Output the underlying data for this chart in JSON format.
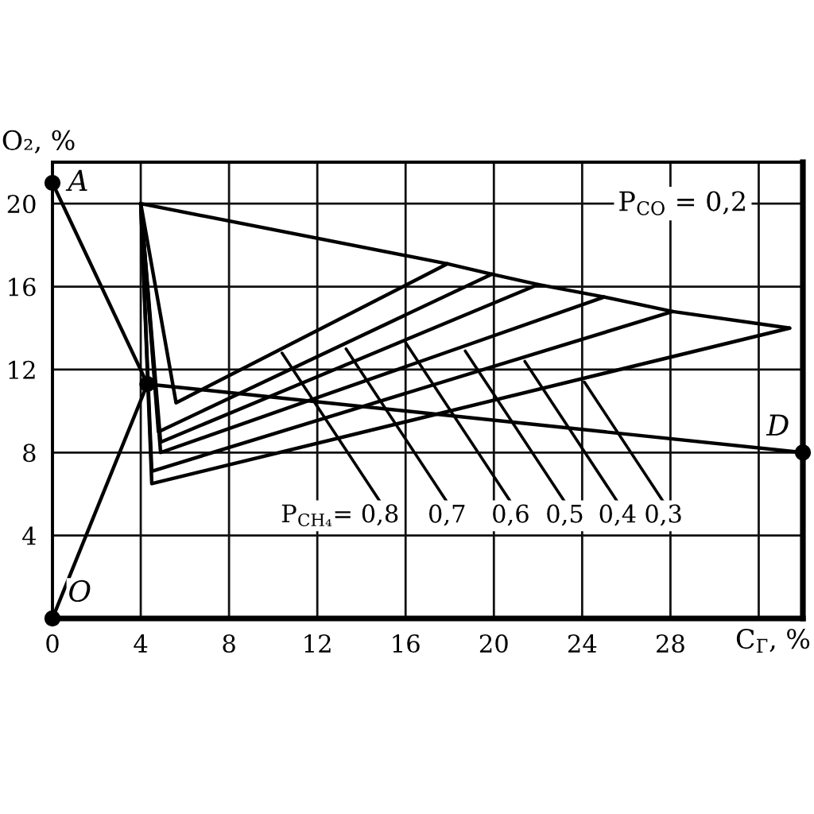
{
  "chart_data": {
    "type": "line",
    "xlabel": "C$_{Г}$, %",
    "ylabel": "O₂, %",
    "xlim": [
      0,
      34
    ],
    "ylim": [
      0,
      22
    ],
    "xticks": [
      0,
      4,
      8,
      12,
      16,
      20,
      24,
      28,
      {
        "value": 32,
        "label": null
      }
    ],
    "yticks": [
      4,
      8,
      12,
      16,
      20
    ],
    "grid": true,
    "legend": false,
    "annotations": [
      "P$_{CO}$ = 0,2",
      {
        "text": "P$_{CH₄}$= 0,8",
        "x": 10.4,
        "y": 12.8
      },
      {
        "text": "0,7",
        "x": 13.3,
        "y": 13.0
      },
      {
        "text": "0,6",
        "x": 16.0,
        "y": 13.3
      },
      {
        "text": "0,5",
        "x": 18.7,
        "y": 12.9
      },
      {
        "text": "0,4",
        "x": 21.4,
        "y": 12.4
      },
      {
        "text": "0,3",
        "x": 24.1,
        "y": 11.4
      }
    ],
    "series": [
      {
        "color": "#000000",
        "x": [
          4,
          17.9,
          19.9,
          22.0,
          25.0,
          28.1,
          33.4
        ],
        "values": [
          20,
          17.1,
          16.6,
          16.1,
          15.5,
          14.8,
          14.0
        ]
      },
      {
        "color": "#000000",
        "x": [
          4,
          5.6,
          17.9
        ],
        "values": [
          20,
          10.4,
          17.1
        ]
      },
      {
        "color": "#000000",
        "x": [
          4,
          4.8,
          19.9
        ],
        "values": [
          20,
          9.0,
          16.6
        ]
      },
      {
        "color": "#000000",
        "x": [
          4,
          4.9,
          22.0
        ],
        "values": [
          20,
          8.5,
          16.1
        ]
      },
      {
        "color": "#000000",
        "x": [
          4,
          4.9,
          25.0
        ],
        "values": [
          20,
          8.0,
          15.5
        ]
      },
      {
        "color": "#000000",
        "x": [
          4,
          4.5,
          28.1
        ],
        "values": [
          20,
          7.1,
          14.8
        ]
      },
      {
        "color": "#000000",
        "x": [
          4,
          4.5,
          33.4
        ],
        "values": [
          20,
          6.5,
          14.0
        ]
      },
      {
        "color": "#000000",
        "x": [
          0,
          4.3
        ],
        "values": [
          21,
          11.3
        ]
      },
      {
        "color": "#000000",
        "x": [
          0,
          4.3
        ],
        "values": [
          0,
          11.3
        ]
      },
      {
        "color": "#000000",
        "x": [
          4.3,
          34
        ],
        "values": [
          11.3,
          8
        ]
      },
      {
        "type": "scatter",
        "name": "A",
        "color": "#000000",
        "marker": "circle",
        "x": [
          0
        ],
        "values": [
          21
        ]
      },
      {
        "type": "scatter",
        "name": "O",
        "color": "#000000",
        "marker": "circle",
        "x": [
          0
        ],
        "values": [
          0
        ]
      },
      {
        "type": "scatter",
        "color": "#000000",
        "marker": "circle",
        "x": [
          4.3
        ],
        "values": [
          11.3
        ]
      },
      {
        "type": "scatter",
        "name": "D",
        "color": "#000000",
        "marker": "circle",
        "x": [
          34
        ],
        "values": [
          8
        ]
      }
    ]
  }
}
